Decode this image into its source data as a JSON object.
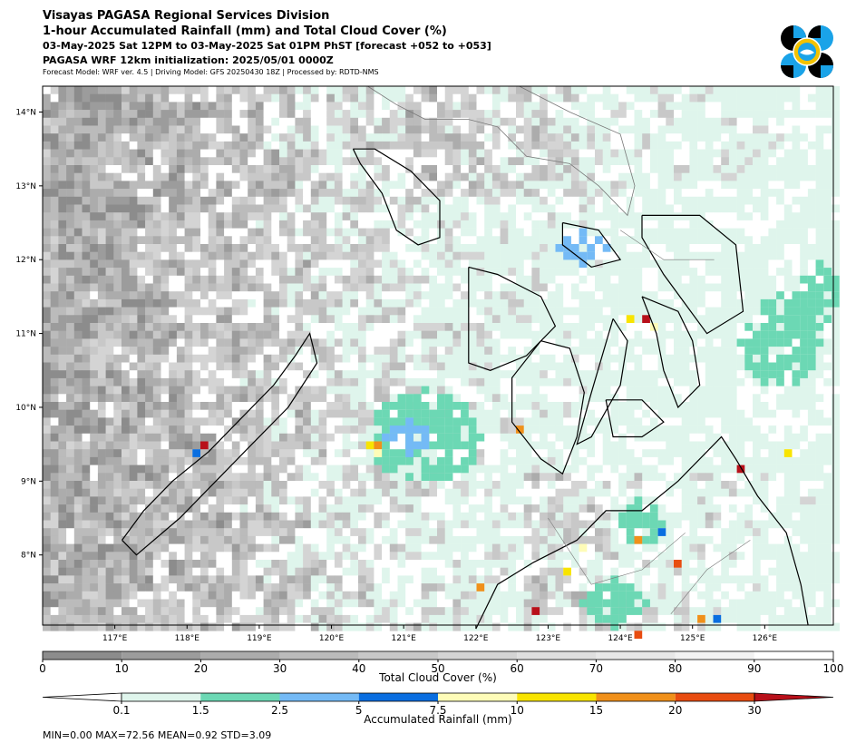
{
  "header": {
    "title": "Visayas PAGASA Regional Services Division",
    "subtitle": "1-hour Accumulated Rainfall (mm) and Total Cloud Cover (%)",
    "valid_time": "03-May-2025 Sat 12PM to 03-May-2025 Sat 01PM PhST [forecast +052 to +053]",
    "init": "PAGASA WRF 12km initialization: 2025/05/01 0000Z",
    "model_info": "Forecast Model: WRF ver. 4.5 | Driving Model: GFS 20250430 18Z | Processed by: RDTD-NMS"
  },
  "logo": {
    "name": "pagasa-logo",
    "colors": [
      "#000000",
      "#1aa3e8",
      "#f2c200",
      "#ffffff"
    ]
  },
  "map": {
    "lon_range": [
      116.0,
      126.95
    ],
    "lat_range": [
      7.05,
      14.35
    ],
    "lon_ticks": [
      "117°E",
      "118°E",
      "119°E",
      "120°E",
      "121°E",
      "122°E",
      "123°E",
      "124°E",
      "125°E",
      "126°E"
    ],
    "lat_ticks": [
      "14°N",
      "13°N",
      "12°N",
      "11°N",
      "10°N",
      "9°N",
      "8°N"
    ],
    "ocean_color": "#ffffff",
    "coastline_color": "#000000",
    "admin_boundary_color": "#777777"
  },
  "cloud_colorbar": {
    "label": "Total Cloud Cover (%)",
    "ticks": [
      "0",
      "10",
      "20",
      "30",
      "40",
      "50",
      "60",
      "70",
      "80",
      "90",
      "100"
    ],
    "colors": [
      "#8c8c8c",
      "#9c9c9c",
      "#acacac",
      "#bbbbbb",
      "#c8c8c8",
      "#d4d4d4",
      "#dfdfdf",
      "#e8e8e8",
      "#f2f2f2",
      "#ffffff"
    ]
  },
  "rain_colorbar": {
    "label": "Accumulated Rainfall (mm)",
    "ticks": [
      "0.1",
      "1.5",
      "2.5",
      "5",
      "7.5",
      "10",
      "15",
      "20",
      "30"
    ],
    "colors": [
      "#dff5ec",
      "#6cd8b4",
      "#74baf6",
      "#0a6ee0",
      "#fefcb8",
      "#f8e400",
      "#f0901a",
      "#e84c10",
      "#b8101a"
    ],
    "under_color": "#ffffff",
    "over_color": "#b8101a"
  },
  "stats": "MIN=0.00   MAX=72.56   MEAN=0.92   STD=3.09"
}
